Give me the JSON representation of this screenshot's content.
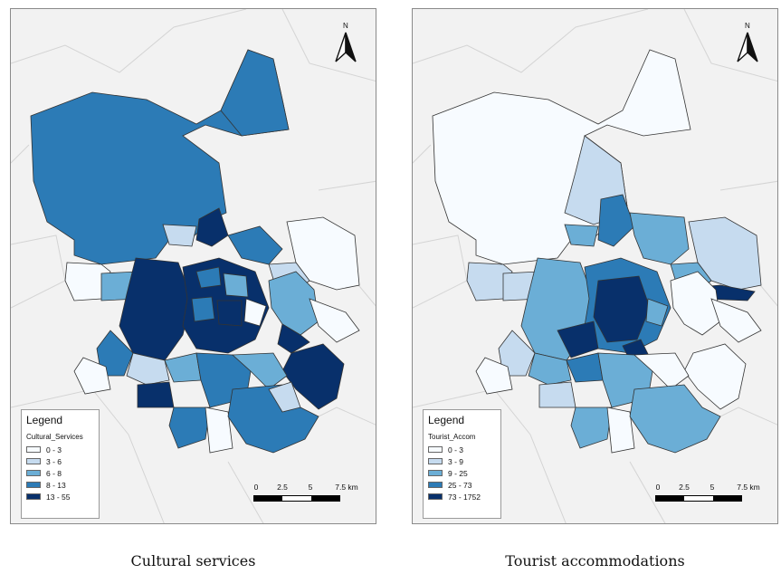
{
  "maps": [
    {
      "caption": "Cultural services",
      "legend": {
        "title": "Legend",
        "field": "Cultural_Services",
        "classes": [
          {
            "label": "0 - 3",
            "color": "#f7fbff"
          },
          {
            "label": "3 - 6",
            "color": "#c6dbef"
          },
          {
            "label": "6 - 8",
            "color": "#6baed6"
          },
          {
            "label": "8 - 13",
            "color": "#2c7bb6"
          },
          {
            "label": "13 - 55",
            "color": "#08306b"
          }
        ]
      },
      "scale": {
        "ticks": [
          "0",
          "2.5",
          "5",
          "7.5 km"
        ]
      },
      "north_label": "N"
    },
    {
      "caption": "Tourist accommodations",
      "legend": {
        "title": "Legend",
        "field": "Tourist_Accom",
        "classes": [
          {
            "label": "0 - 3",
            "color": "#f7fbff"
          },
          {
            "label": "3 - 9",
            "color": "#c6dbef"
          },
          {
            "label": "9 - 25",
            "color": "#6baed6"
          },
          {
            "label": "25 - 73",
            "color": "#2c7bb6"
          },
          {
            "label": "73 - 1752",
            "color": "#08306b"
          }
        ]
      },
      "scale": {
        "ticks": [
          "0",
          "2.5",
          "5",
          "7.5 km"
        ]
      },
      "north_label": "N"
    }
  ]
}
